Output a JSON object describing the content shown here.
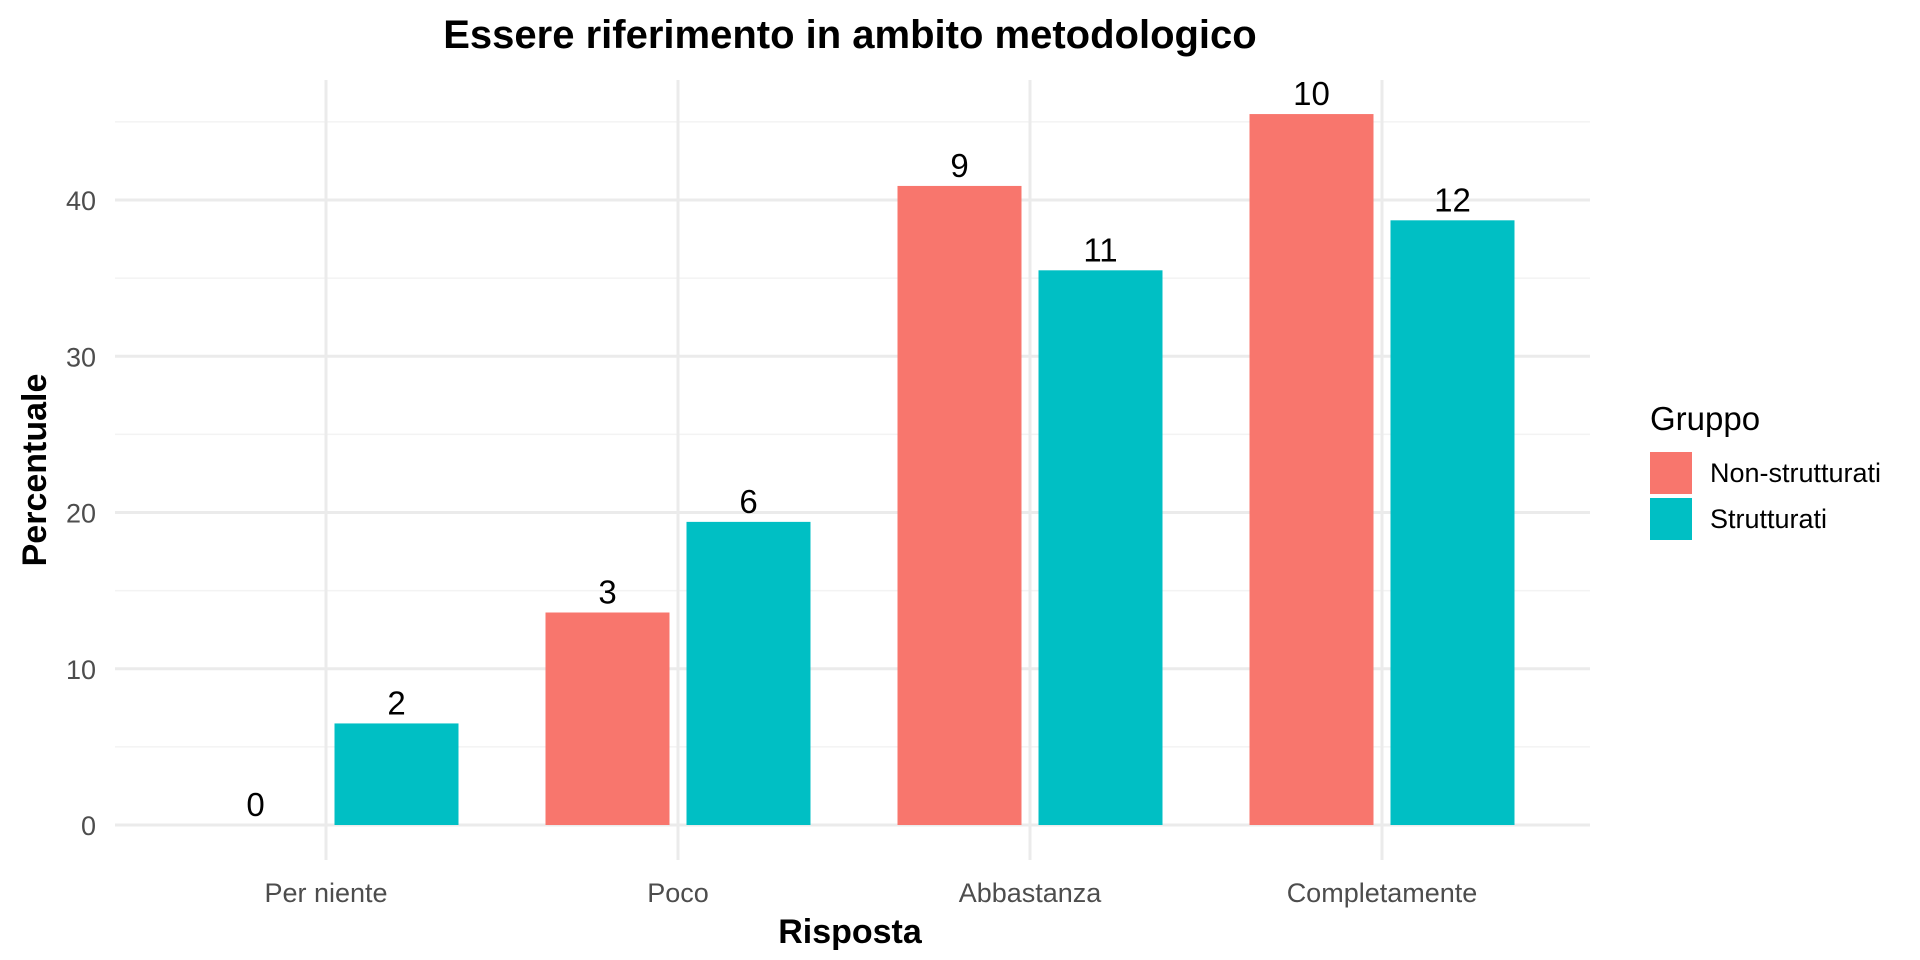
{
  "chart_data": {
    "type": "bar",
    "title": "Essere riferimento in ambito metodologico",
    "xlabel": "Risposta",
    "ylabel": "Percentuale",
    "categories": [
      "Per niente",
      "Poco",
      "Abbastanza",
      "Completamente"
    ],
    "series": [
      {
        "name": "Non-strutturati",
        "color": "#F8766D",
        "values": [
          0,
          13.6,
          40.9,
          45.5
        ],
        "labels": [
          "0",
          "3",
          "9",
          "10"
        ]
      },
      {
        "name": "Strutturati",
        "color": "#00BFC4",
        "values": [
          6.5,
          19.4,
          35.5,
          38.7
        ],
        "labels": [
          "2",
          "6",
          "11",
          "12"
        ]
      }
    ],
    "ylim": [
      0,
      47.8
    ],
    "yticks": [
      "0",
      "10",
      "20",
      "30",
      "40"
    ],
    "grid": true,
    "legend": {
      "title": "Gruppo",
      "position": "right"
    }
  }
}
